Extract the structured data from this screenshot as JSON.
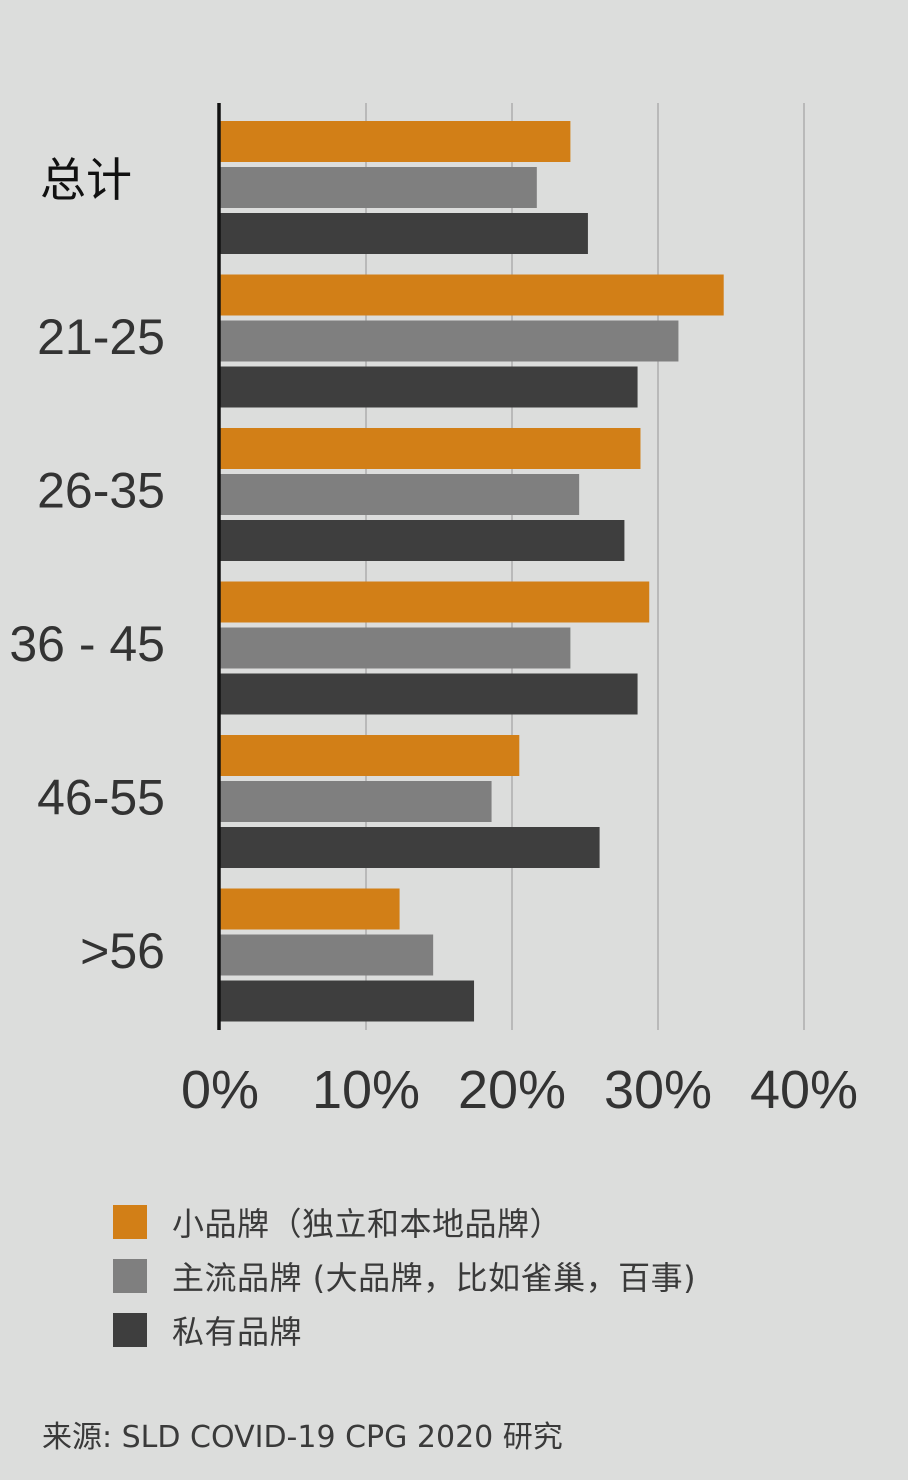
{
  "chart_data": {
    "type": "bar",
    "orientation": "horizontal",
    "categories": [
      "总计",
      "21-25",
      "26-35",
      "36 - 45",
      "46-55",
      ">56"
    ],
    "series": [
      {
        "name": "小品牌（独立和本地品牌）",
        "color": "#d27f17",
        "values": [
          24.0,
          34.5,
          28.8,
          29.4,
          20.5,
          12.3
        ]
      },
      {
        "name": "主流品牌 (大品牌，比如雀巢，百事)",
        "color": "#7f7f7f",
        "values": [
          21.7,
          31.4,
          24.6,
          24.0,
          18.6,
          14.6
        ]
      },
      {
        "name": "私有品牌",
        "color": "#3e3e3e",
        "values": [
          25.2,
          28.6,
          27.7,
          28.6,
          26.0,
          17.4
        ]
      }
    ],
    "xlim": [
      0,
      40
    ],
    "xticks": [
      0,
      10,
      20,
      30,
      40
    ],
    "xtick_labels": [
      "0%",
      "10%",
      "20%",
      "30%",
      "40%"
    ],
    "grid": true,
    "legend_position": "bottom",
    "title": "",
    "xlabel": "",
    "ylabel": ""
  },
  "legend": {
    "items": [
      {
        "label": "小品牌（独立和本地品牌）",
        "color": "#d27f17"
      },
      {
        "label": "主流品牌 (大品牌，比如雀巢，百事)",
        "color": "#7f7f7f"
      },
      {
        "label": "私有品牌",
        "color": "#3e3e3e"
      }
    ]
  },
  "source": "来源: SLD COVID-19 CPG 2020 研究"
}
